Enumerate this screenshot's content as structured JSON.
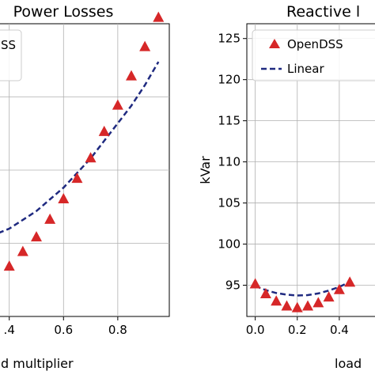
{
  "chart_data": [
    {
      "type": "scatter",
      "title": "Power Losses",
      "xlabel": "d multiplier",
      "ylabel": "",
      "xlim": [
        0.36,
        0.99
      ],
      "ylim": [
        0,
        1
      ],
      "xticks": [
        0.4,
        0.6,
        0.8
      ],
      "xtick_labels": [
        ".4",
        "0.6",
        "0.8"
      ],
      "yticks": [],
      "grid": true,
      "legend": {
        "position": "top-left",
        "entries": [
          "SS"
        ]
      },
      "series": [
        {
          "name": "OpenDSS",
          "marker": "triangle",
          "color": "#d62728",
          "x": [
            0.4,
            0.45,
            0.5,
            0.55,
            0.6,
            0.65,
            0.7,
            0.75,
            0.8,
            0.85,
            0.9,
            0.95
          ],
          "y": [
            0.17,
            0.22,
            0.27,
            0.33,
            0.4,
            0.47,
            0.54,
            0.63,
            0.72,
            0.82,
            0.92,
            1.02
          ]
        },
        {
          "name": "Linear",
          "style": "dashed",
          "color": "#1f2a80",
          "x": [
            0.36,
            0.4,
            0.45,
            0.5,
            0.55,
            0.6,
            0.65,
            0.7,
            0.75,
            0.8,
            0.85,
            0.9,
            0.95
          ],
          "y": [
            0.285,
            0.3,
            0.33,
            0.36,
            0.4,
            0.44,
            0.49,
            0.54,
            0.6,
            0.66,
            0.72,
            0.79,
            0.87
          ]
        }
      ]
    },
    {
      "type": "scatter",
      "title": "Reactive l",
      "xlabel": "load",
      "ylabel": "kVar",
      "xlim": [
        -0.04,
        0.6
      ],
      "ylim": [
        91.2,
        126.8
      ],
      "xticks": [
        0.0,
        0.2,
        0.4
      ],
      "xtick_labels": [
        "0.0",
        "0.2",
        "0.4"
      ],
      "yticks": [
        95,
        100,
        105,
        110,
        115,
        120,
        125
      ],
      "grid": true,
      "legend": {
        "position": "top-left",
        "entries": [
          "OpenDSS",
          "Linear"
        ]
      },
      "series": [
        {
          "name": "OpenDSS",
          "marker": "triangle",
          "color": "#d62728",
          "x": [
            0.0,
            0.05,
            0.1,
            0.15,
            0.2,
            0.25,
            0.3,
            0.35,
            0.4,
            0.45
          ],
          "y": [
            95.1,
            93.9,
            93.0,
            92.4,
            92.2,
            92.4,
            92.8,
            93.5,
            94.4,
            95.3
          ]
        },
        {
          "name": "Linear",
          "style": "dashed",
          "color": "#1f2a80",
          "x": [
            0.0,
            0.05,
            0.1,
            0.15,
            0.2,
            0.25,
            0.3,
            0.35,
            0.4,
            0.45
          ],
          "y": [
            94.9,
            94.4,
            94.05,
            93.85,
            93.75,
            93.8,
            94.0,
            94.35,
            94.8,
            95.4
          ]
        }
      ]
    }
  ]
}
